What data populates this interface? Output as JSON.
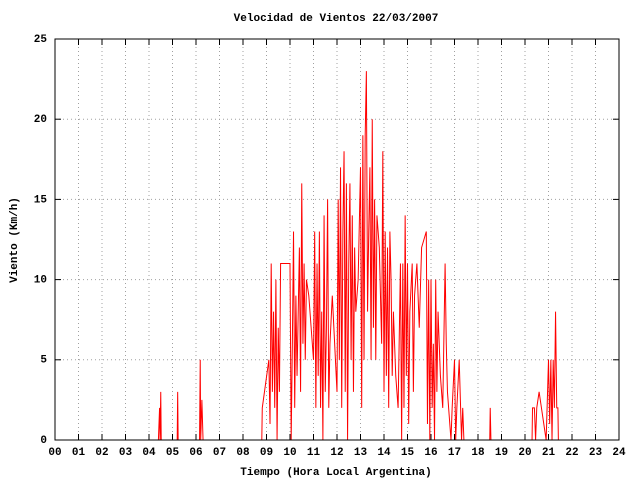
{
  "chart_data": {
    "type": "line",
    "title": "Velocidad de Vientos 22/03/2007",
    "xlabel": "Tiempo (Hora Local Argentina)",
    "ylabel": "Viento (Km/h)",
    "color": "#ff0000",
    "grid": true,
    "xlim": [
      0,
      24
    ],
    "ylim": [
      0,
      25
    ],
    "xticks": [
      {
        "value": 0,
        "label": "00"
      },
      {
        "value": 1,
        "label": "01"
      },
      {
        "value": 2,
        "label": "02"
      },
      {
        "value": 3,
        "label": "03"
      },
      {
        "value": 4,
        "label": "04"
      },
      {
        "value": 5,
        "label": "05"
      },
      {
        "value": 6,
        "label": "06"
      },
      {
        "value": 7,
        "label": "07"
      },
      {
        "value": 8,
        "label": "08"
      },
      {
        "value": 9,
        "label": "09"
      },
      10,
      11,
      12,
      13,
      14,
      15,
      16,
      17,
      18,
      19,
      20,
      21,
      22,
      23,
      24
    ],
    "yticks": [
      0,
      5,
      10,
      15,
      20,
      25
    ],
    "x": [
      0,
      4.4,
      4.45,
      4.47,
      4.5,
      4.52,
      5.2,
      5.22,
      5.24,
      6.15,
      6.18,
      6.2,
      6.25,
      6.3,
      8.8,
      8.82,
      9.1,
      9.15,
      9.2,
      9.25,
      9.3,
      9.35,
      9.4,
      9.45,
      9.5,
      9.55,
      9.6,
      9.7,
      10.0,
      10.05,
      10.1,
      10.15,
      10.2,
      10.25,
      10.3,
      10.4,
      10.45,
      10.5,
      10.55,
      10.6,
      10.65,
      10.7,
      10.8,
      11.0,
      11.05,
      11.1,
      11.15,
      11.2,
      11.25,
      11.3,
      11.35,
      11.4,
      11.45,
      11.5,
      11.55,
      11.6,
      11.65,
      11.7,
      11.8,
      12.0,
      12.05,
      12.1,
      12.15,
      12.2,
      12.25,
      12.3,
      12.35,
      12.4,
      12.45,
      12.5,
      12.55,
      12.6,
      12.65,
      12.7,
      12.75,
      12.8,
      12.9,
      13.0,
      13.05,
      13.1,
      13.15,
      13.2,
      13.25,
      13.3,
      13.35,
      13.4,
      13.45,
      13.5,
      13.55,
      13.6,
      13.65,
      13.7,
      13.8,
      13.9,
      13.95,
      14.0,
      14.05,
      14.1,
      14.15,
      14.2,
      14.25,
      14.3,
      14.35,
      14.4,
      14.5,
      14.6,
      14.7,
      14.75,
      14.8,
      14.85,
      14.9,
      14.95,
      15.0,
      15.05,
      15.1,
      15.2,
      15.25,
      15.3,
      15.4,
      15.5,
      15.6,
      15.8,
      15.85,
      15.9,
      15.95,
      16.0,
      16.05,
      16.1,
      16.15,
      16.2,
      16.25,
      16.3,
      16.4,
      16.5,
      16.6,
      16.65,
      16.7,
      16.8,
      16.85,
      16.9,
      17.0,
      17.05,
      17.1,
      17.2,
      17.3,
      17.35,
      17.4,
      18.5,
      18.52,
      18.55,
      20.3,
      20.32,
      20.4,
      20.45,
      20.5,
      20.6,
      20.7,
      20.9,
      21.0,
      21.05,
      21.1,
      21.15,
      21.2,
      21.25,
      21.3,
      21.35,
      21.4,
      21.42
    ],
    "values": [
      0,
      0,
      2,
      0,
      3,
      0,
      0,
      3,
      0,
      0,
      5,
      0,
      2.5,
      0,
      0,
      2,
      5,
      1,
      11,
      3,
      8,
      2,
      10,
      0,
      7,
      3,
      11,
      11,
      11,
      0,
      6,
      13,
      2,
      9,
      4,
      12,
      3,
      16,
      6,
      11,
      5,
      10,
      9,
      5,
      13,
      2,
      11,
      4,
      13,
      2,
      8,
      0,
      14,
      3,
      7,
      15,
      2,
      6,
      9,
      3,
      15,
      5,
      17,
      2,
      13,
      18,
      3,
      16,
      0,
      11,
      16,
      5,
      14,
      3,
      12,
      8,
      10,
      17,
      2,
      19,
      5,
      19,
      23,
      8,
      13,
      17,
      5,
      20,
      7,
      15,
      5,
      14,
      12,
      6,
      18,
      3,
      13,
      4,
      12,
      2,
      13,
      10,
      4,
      8,
      4,
      2,
      11,
      0,
      11,
      2,
      14,
      4,
      11,
      1,
      8,
      11,
      3,
      9,
      11,
      7,
      12,
      13,
      1,
      10,
      0,
      10,
      2,
      6,
      0,
      10,
      3,
      8,
      4,
      2,
      11,
      6,
      3,
      1,
      0,
      2,
      5,
      0,
      2,
      5,
      0,
      2,
      0,
      0,
      2,
      0,
      0,
      2,
      2,
      0,
      2,
      3,
      2,
      0,
      5,
      1,
      5,
      0,
      5,
      2,
      8,
      2,
      2,
      0
    ]
  }
}
